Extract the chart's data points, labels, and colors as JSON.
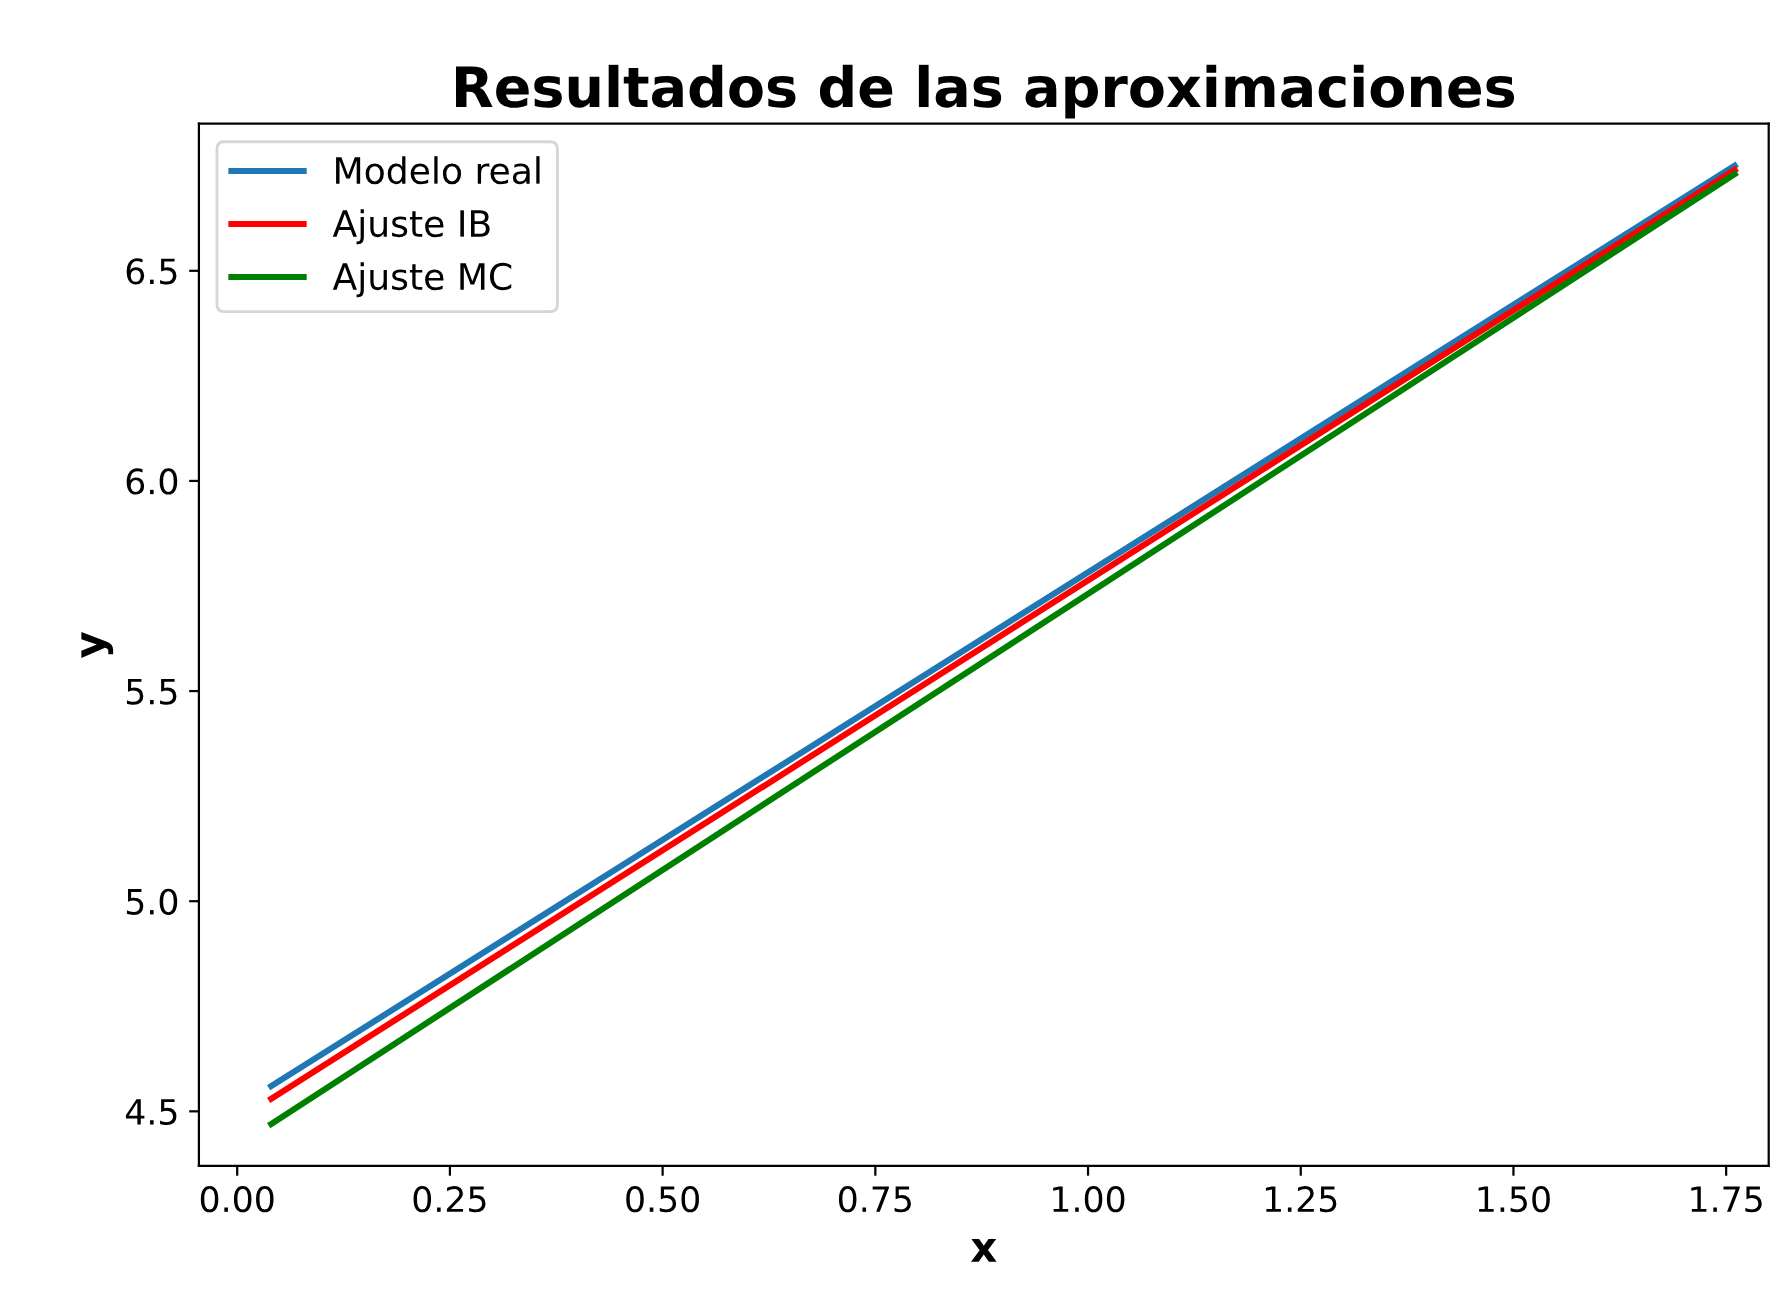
{
  "chart_data": {
    "type": "line",
    "title": "Resultados de las aproximaciones",
    "xlabel": "x",
    "ylabel": "y",
    "x": [
      0.04,
      1.76
    ],
    "series": [
      {
        "name": "Modelo real",
        "color": "#1f77b4",
        "values": [
          4.56,
          6.75
        ]
      },
      {
        "name": "Ajuste IB",
        "color": "#ff0000",
        "values": [
          4.53,
          6.74
        ]
      },
      {
        "name": "Ajuste MC",
        "color": "#008000",
        "values": [
          4.47,
          6.73
        ]
      }
    ],
    "xlim": [
      -0.045,
      1.8
    ],
    "ylim": [
      4.37,
      6.85
    ],
    "xticks": [
      {
        "value": 0,
        "label": "0.00"
      },
      {
        "value": 0.25,
        "label": "0.25"
      },
      {
        "value": 0.5,
        "label": "0.50"
      },
      {
        "value": 0.75,
        "label": "0.75"
      },
      {
        "value": 1,
        "label": "1.00"
      },
      {
        "value": 1.25,
        "label": "1.25"
      },
      {
        "value": 1.5,
        "label": "1.50"
      },
      {
        "value": 1.75,
        "label": "1.75"
      }
    ],
    "yticks": [
      {
        "value": 4.5,
        "label": "4.5"
      },
      {
        "value": 5,
        "label": "5.0"
      },
      {
        "value": 5.5,
        "label": "5.5"
      },
      {
        "value": 6,
        "label": "6.0"
      },
      {
        "value": 6.5,
        "label": "6.5"
      }
    ],
    "legend": "top left",
    "grid": false
  }
}
